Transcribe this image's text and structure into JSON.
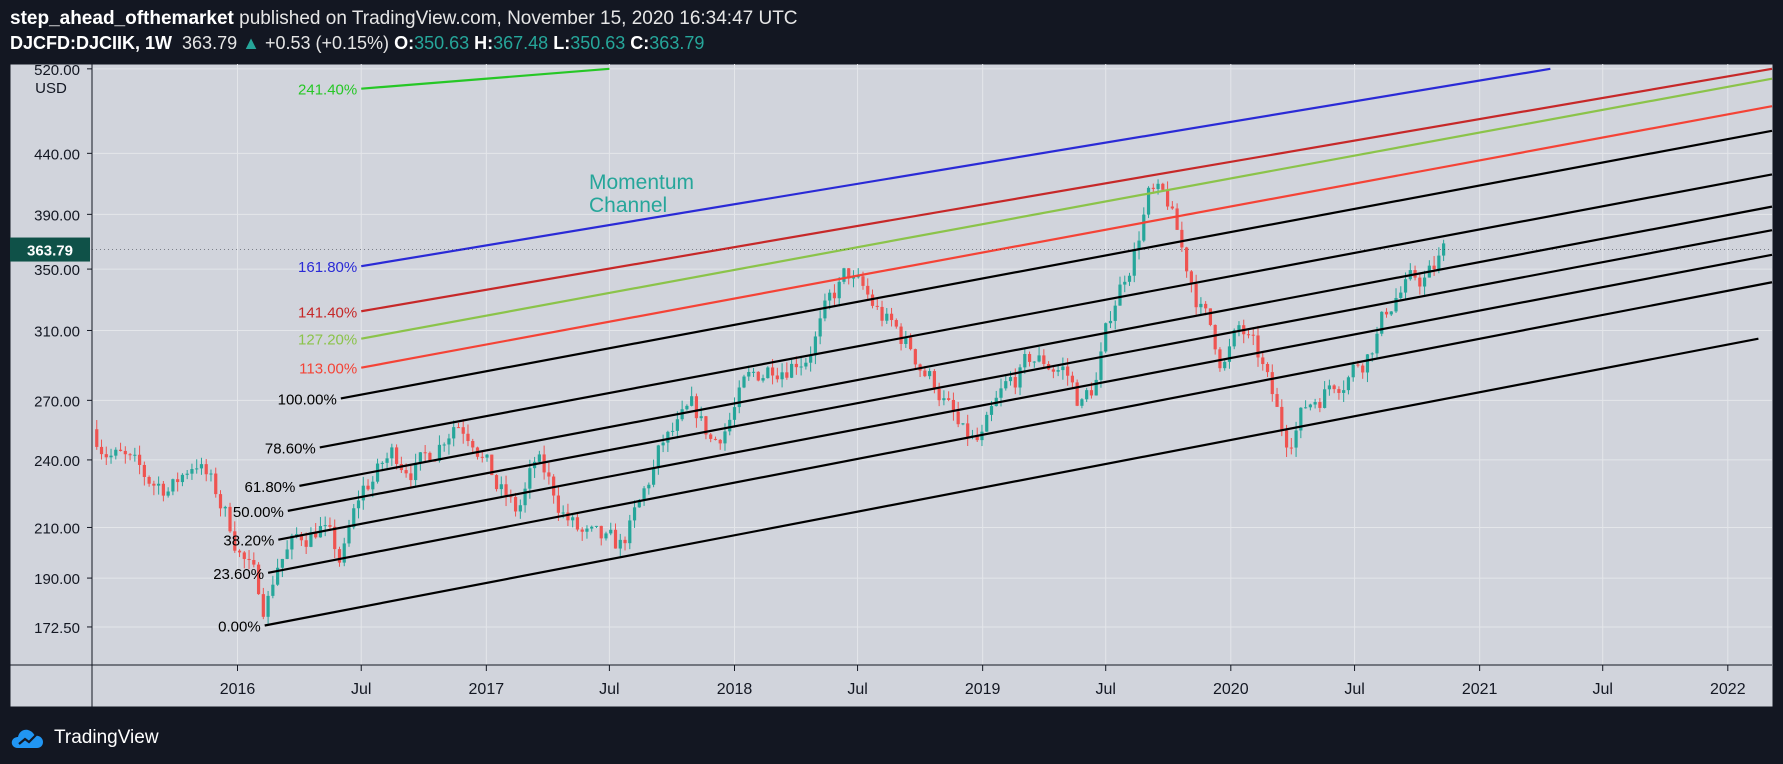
{
  "header": {
    "author": "step_ahead_ofthemarket",
    "published_text": "published on TradingView.com, November 15, 2020 16:34:47 UTC",
    "symbol": "DJCFD:DJCIIK, 1W",
    "price": "363.79",
    "change": "+0.53 (+0.15%)",
    "o_label": "O:",
    "o_value": "350.63",
    "h_label": "H:",
    "h_value": "367.48",
    "l_label": "L:",
    "l_value": "350.63",
    "c_label": "C:",
    "c_value": "363.79"
  },
  "footer": {
    "brand": "TradingView"
  },
  "colors": {
    "up": "#26a69a",
    "down": "#ef5350",
    "background": "#d1d4dc",
    "frame": "#131722",
    "annotation": "#26a69a"
  },
  "chart_data": {
    "type": "candlestick",
    "ylabel": "USD",
    "y_scale": "log",
    "ylim": [
      160,
      525
    ],
    "xlim": [
      "2015-06-01",
      "2022-03-07"
    ],
    "current_price": 363.79,
    "y_ticks": [
      "520.00",
      "440.00",
      "390.00",
      "350.00",
      "310.00",
      "270.00",
      "240.00",
      "210.00",
      "190.00",
      "172.50"
    ],
    "x_ticks": [
      {
        "label": "2016",
        "date": "2016-01-01"
      },
      {
        "label": "Jul",
        "date": "2016-07-01"
      },
      {
        "label": "2017",
        "date": "2017-01-01"
      },
      {
        "label": "Jul",
        "date": "2017-07-01"
      },
      {
        "label": "2018",
        "date": "2018-01-01"
      },
      {
        "label": "Jul",
        "date": "2018-07-01"
      },
      {
        "label": "2019",
        "date": "2019-01-01"
      },
      {
        "label": "Jul",
        "date": "2019-07-01"
      },
      {
        "label": "2020",
        "date": "2020-01-01"
      },
      {
        "label": "Jul",
        "date": "2020-07-01"
      },
      {
        "label": "2021",
        "date": "2021-01-01"
      },
      {
        "label": "Jul",
        "date": "2021-07-01"
      },
      {
        "label": "2022",
        "date": "2022-01-01"
      }
    ],
    "annotation": {
      "line1": "Momentum",
      "line2": "Channel",
      "date": "2017-06-01",
      "price": 410
    },
    "price_path": [
      [
        "2015-06-01",
        255
      ],
      [
        "2015-08-15",
        230
      ],
      [
        "2015-10-01",
        228
      ],
      [
        "2015-11-01",
        242
      ],
      [
        "2015-12-15",
        215
      ],
      [
        "2016-02-10",
        180
      ],
      [
        "2016-03-01",
        198
      ],
      [
        "2016-05-01",
        212
      ],
      [
        "2016-06-01",
        195
      ],
      [
        "2016-07-01",
        225
      ],
      [
        "2016-08-15",
        242
      ],
      [
        "2016-10-01",
        238
      ],
      [
        "2016-11-15",
        262
      ],
      [
        "2016-12-15",
        255
      ],
      [
        "2017-01-15",
        228
      ],
      [
        "2017-02-15",
        215
      ],
      [
        "2017-03-15",
        238
      ],
      [
        "2017-04-15",
        222
      ],
      [
        "2017-05-15",
        208
      ],
      [
        "2017-06-15",
        202
      ],
      [
        "2017-07-15",
        200
      ],
      [
        "2017-08-15",
        218
      ],
      [
        "2017-09-15",
        245
      ],
      [
        "2017-11-01",
        262
      ],
      [
        "2017-12-01",
        248
      ],
      [
        "2018-01-15",
        275
      ],
      [
        "2018-03-01",
        292
      ],
      [
        "2018-04-15",
        298
      ],
      [
        "2018-05-15",
        320
      ],
      [
        "2018-06-15",
        345
      ],
      [
        "2018-08-01",
        320
      ],
      [
        "2018-09-15",
        300
      ],
      [
        "2018-11-01",
        275
      ],
      [
        "2018-12-01",
        250
      ],
      [
        "2018-12-28",
        246
      ],
      [
        "2019-02-01",
        272
      ],
      [
        "2019-03-15",
        292
      ],
      [
        "2019-05-01",
        288
      ],
      [
        "2019-05-25",
        268
      ],
      [
        "2019-06-15",
        278
      ],
      [
        "2019-07-15",
        330
      ],
      [
        "2019-08-15",
        370
      ],
      [
        "2019-09-01",
        405
      ],
      [
        "2019-10-01",
        395
      ],
      [
        "2019-10-25",
        355
      ],
      [
        "2019-11-25",
        318
      ],
      [
        "2019-12-20",
        292
      ],
      [
        "2020-01-15",
        310
      ],
      [
        "2020-02-15",
        288
      ],
      [
        "2020-03-20",
        250
      ],
      [
        "2020-04-15",
        265
      ],
      [
        "2020-06-01",
        282
      ],
      [
        "2020-07-15",
        295
      ],
      [
        "2020-09-01",
        335
      ],
      [
        "2020-10-01",
        340
      ],
      [
        "2020-10-25",
        348
      ],
      [
        "2020-11-13",
        363.79
      ]
    ],
    "channel_lines": [
      {
        "label": "241.40%",
        "color": "#26c726",
        "x1": "2016-07-01",
        "y1": 500,
        "x2": "2017-07-01",
        "y2": 520
      },
      {
        "label": "161.80%",
        "color": "#2a2ad6",
        "x1": "2016-07-01",
        "y1": 352,
        "x2": "2021-04-15",
        "y2": 520
      },
      {
        "label": "141.40%",
        "color": "#c62828",
        "x1": "2016-07-01",
        "y1": 322,
        "x2": "2022-03-07",
        "y2": 520
      },
      {
        "label": "127.20%",
        "color": "#8bc34a",
        "x1": "2016-07-01",
        "y1": 305,
        "x2": "2022-03-07",
        "y2": 510
      },
      {
        "label": "113.00%",
        "color": "#f44336",
        "x1": "2016-07-01",
        "y1": 288,
        "x2": "2022-03-07",
        "y2": 483
      },
      {
        "label": "100.00%",
        "color": "#000000",
        "x1": "2016-06-01",
        "y1": 271,
        "x2": "2022-03-07",
        "y2": 460
      },
      {
        "label": "78.60%",
        "color": "#000000",
        "x1": "2016-05-01",
        "y1": 246,
        "x2": "2022-03-07",
        "y2": 422
      },
      {
        "label": "61.80%",
        "color": "#000000",
        "x1": "2016-04-01",
        "y1": 228,
        "x2": "2022-03-07",
        "y2": 396
      },
      {
        "label": "50.00%",
        "color": "#000000",
        "x1": "2016-03-15",
        "y1": 217,
        "x2": "2022-03-07",
        "y2": 378
      },
      {
        "label": "38.20%",
        "color": "#000000",
        "x1": "2016-03-01",
        "y1": 205,
        "x2": "2022-03-07",
        "y2": 360
      },
      {
        "label": "23.60%",
        "color": "#000000",
        "x1": "2016-02-15",
        "y1": 192,
        "x2": "2022-03-07",
        "y2": 341
      },
      {
        "label": "0.00%",
        "color": "#000000",
        "x1": "2016-02-10",
        "y1": 173,
        "x2": "2022-02-15",
        "y2": 305
      }
    ]
  }
}
